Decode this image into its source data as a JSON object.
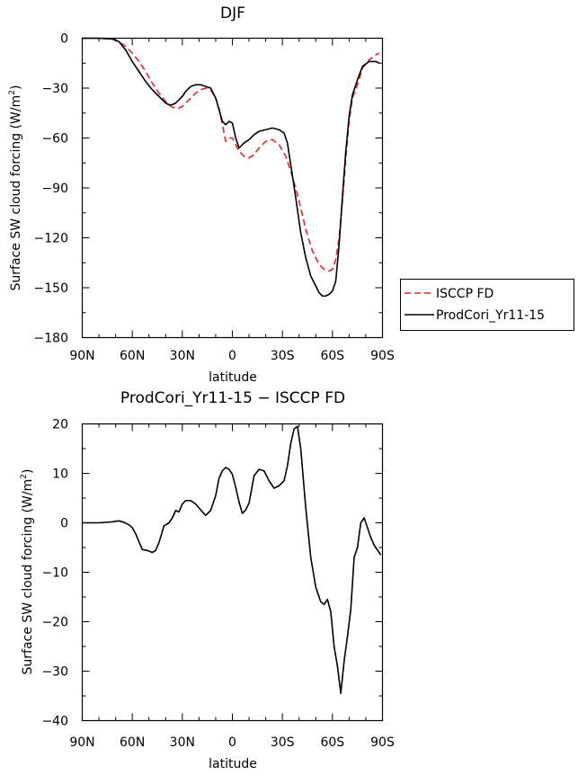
{
  "chart_data": [
    {
      "type": "line",
      "title": "DJF",
      "xlabel": "latitude",
      "ylabel_main": "Surface SW cloud forcing (W/m",
      "ylabel_sup": "2",
      "ylabel_end": ")",
      "xlim": [
        90,
        -90
      ],
      "ylim": [
        -180,
        0
      ],
      "xticks": [
        90,
        60,
        30,
        0,
        -30,
        -60,
        -90
      ],
      "xtick_labels": [
        "90N",
        "60N",
        "30N",
        "0",
        "30S",
        "60S",
        "90S"
      ],
      "yticks": [
        0,
        -30,
        -60,
        -90,
        -120,
        -150,
        -180
      ],
      "ytick_labels": [
        "0",
        "−30",
        "−60",
        "−90",
        "−120",
        "−150",
        "−180"
      ],
      "legend_position": "right",
      "series": [
        {
          "name": "ISCCP FD",
          "color": "#e8262b",
          "dash": "dashed",
          "x": [
            90,
            80,
            72,
            68,
            64,
            60,
            56,
            52,
            48,
            44,
            40,
            38,
            36,
            34,
            32,
            30,
            28,
            25,
            22,
            19,
            16,
            13,
            10,
            8,
            6,
            4,
            2,
            0,
            -2,
            -4,
            -7,
            -10,
            -13,
            -16,
            -20,
            -24,
            -28,
            -32,
            -36,
            -40,
            -44,
            -48,
            -52,
            -55,
            -58,
            -60,
            -62,
            -64,
            -66,
            -68,
            -70,
            -72,
            -75,
            -78,
            -82,
            -86,
            -88
          ],
          "y": [
            0,
            0,
            -0.5,
            -2,
            -5,
            -9,
            -14,
            -20,
            -27,
            -33,
            -38,
            -40,
            -41.5,
            -42,
            -42,
            -41,
            -39,
            -36,
            -33,
            -31,
            -30,
            -31,
            -36,
            -42,
            -52,
            -62,
            -60,
            -60,
            -64,
            -68,
            -71,
            -72,
            -70,
            -66,
            -62,
            -61,
            -64,
            -71,
            -83,
            -98,
            -115,
            -128,
            -136,
            -139,
            -140,
            -139,
            -133,
            -120,
            -98,
            -72,
            -50,
            -36,
            -28,
            -18,
            -13,
            -10,
            -9
          ]
        },
        {
          "name": "ProdCori_Yr11-15",
          "color": "#000000",
          "dash": "solid",
          "x": [
            90,
            80,
            72,
            68,
            64,
            60,
            56,
            52,
            48,
            44,
            40,
            38,
            36,
            34,
            32,
            30,
            28,
            25,
            22,
            19,
            16,
            13,
            10,
            8,
            6,
            4,
            2,
            0,
            -2,
            -4,
            -7,
            -10,
            -13,
            -16,
            -20,
            -24,
            -28,
            -31,
            -33,
            -35,
            -38,
            -41,
            -44,
            -47,
            -50,
            -52,
            -54,
            -56,
            -58,
            -60,
            -62,
            -64,
            -66,
            -68,
            -70,
            -72,
            -75,
            -78,
            -82,
            -86,
            -88
          ],
          "y": [
            0,
            0,
            -0.5,
            -2,
            -7,
            -14,
            -20,
            -26,
            -31,
            -35,
            -39,
            -40,
            -40,
            -39,
            -37,
            -35,
            -32,
            -29,
            -28,
            -28,
            -29,
            -30,
            -36,
            -43,
            -50,
            -52,
            -50,
            -51,
            -60,
            -66,
            -63,
            -61,
            -58,
            -56,
            -55,
            -54,
            -55,
            -57,
            -63,
            -76,
            -96,
            -117,
            -132,
            -143,
            -149,
            -153,
            -155,
            -155,
            -154,
            -152,
            -146,
            -124,
            -95,
            -68,
            -47,
            -34,
            -25,
            -17,
            -14,
            -14,
            -15
          ]
        }
      ]
    },
    {
      "type": "line",
      "title": "ProdCori_Yr11-15 − ISCCP FD",
      "xlabel": "latitude",
      "ylabel_main": "Surface SW cloud forcing (W/m",
      "ylabel_sup": "2",
      "ylabel_end": ")",
      "xlim": [
        90,
        -90
      ],
      "ylim": [
        -40,
        20
      ],
      "xticks": [
        90,
        60,
        30,
        0,
        -30,
        -60,
        -90
      ],
      "xtick_labels": [
        "90N",
        "60N",
        "30N",
        "0",
        "30S",
        "60S",
        "90S"
      ],
      "yticks": [
        20,
        10,
        0,
        -10,
        -20,
        -30,
        -40
      ],
      "ytick_labels": [
        "20",
        "10",
        "0",
        "−10",
        "−20",
        "−30",
        "−40"
      ],
      "series": [
        {
          "color": "#000000",
          "dash": "solid",
          "x": [
            90,
            80,
            72,
            68,
            65,
            62,
            60,
            58,
            56,
            54,
            51,
            48,
            46,
            44,
            41,
            38,
            36,
            34,
            32,
            30,
            28,
            25,
            22,
            19,
            16,
            13,
            10,
            8,
            6,
            4,
            2,
            0,
            -2,
            -4,
            -6,
            -8,
            -10,
            -13,
            -16,
            -19,
            -22,
            -25,
            -28,
            -31,
            -33,
            -35,
            -37,
            -39,
            -41,
            -44,
            -47,
            -50,
            -53,
            -55,
            -57,
            -59,
            -61,
            -63,
            -65,
            -67,
            -69,
            -71,
            -73,
            -75,
            -77,
            -79,
            -81,
            -83,
            -85,
            -87,
            -89
          ],
          "y": [
            0,
            0,
            0.2,
            0.4,
            0.1,
            -0.4,
            -1,
            -2.2,
            -3.8,
            -5.4,
            -5.6,
            -6,
            -5.6,
            -4,
            -0.6,
            0,
            1,
            2.5,
            2.2,
            3.8,
            4.5,
            4.5,
            3.8,
            2.6,
            1.5,
            2.5,
            5.5,
            9,
            10.5,
            11.2,
            10.8,
            9.8,
            7.2,
            4.2,
            1.9,
            2.6,
            4,
            9.5,
            10.8,
            10.5,
            8.5,
            7,
            7.5,
            8.5,
            11.5,
            16,
            19,
            19.5,
            15,
            3,
            -7,
            -13,
            -16,
            -16.5,
            -15.5,
            -18,
            -25,
            -29,
            -34.5,
            -28,
            -23,
            -17.5,
            -7,
            -5,
            0,
            1,
            -1,
            -3,
            -4.5,
            -5.5,
            -6.5
          ]
        }
      ]
    }
  ]
}
